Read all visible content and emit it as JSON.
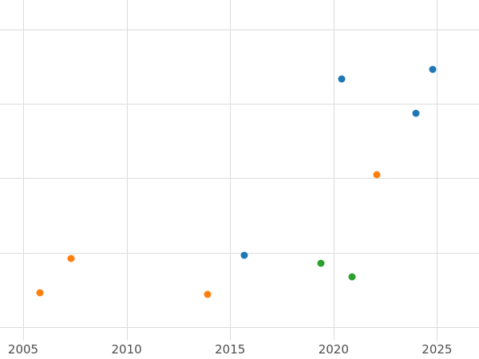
{
  "chart_data": {
    "type": "scatter",
    "title": "",
    "xlabel": "",
    "ylabel": "",
    "grid": true,
    "legend_position": "none",
    "xlim": [
      2003.88,
      2027.03
    ],
    "ylim": [
      -4.5,
      109.8
    ],
    "x_ticks": [
      2005,
      2010,
      2015,
      2020,
      2025
    ],
    "x_tick_labels": [
      "2005",
      "2010",
      "2015",
      "2020",
      "2025"
    ],
    "y_gridline_values": [
      0,
      25,
      50,
      75,
      100
    ],
    "series": [
      {
        "name": "blue-series",
        "color": "#1f77b4",
        "points": [
          [
            2015.7,
            24.1
          ],
          [
            2020.4,
            83.2
          ],
          [
            2024.0,
            71.7
          ],
          [
            2024.8,
            86.6
          ]
        ]
      },
      {
        "name": "orange-series",
        "color": "#ff7f0e",
        "points": [
          [
            2005.8,
            11.5
          ],
          [
            2007.3,
            23.0
          ],
          [
            2013.9,
            11.0
          ],
          [
            2022.1,
            51.3
          ]
        ]
      },
      {
        "name": "green-series",
        "color": "#2ca02c",
        "points": [
          [
            2019.4,
            21.4
          ],
          [
            2020.9,
            16.8
          ]
        ]
      }
    ]
  },
  "styles": {
    "background_color": "#ffffff",
    "grid_color": "#dcdcdc",
    "tick_label_color": "#4d4d4d"
  }
}
